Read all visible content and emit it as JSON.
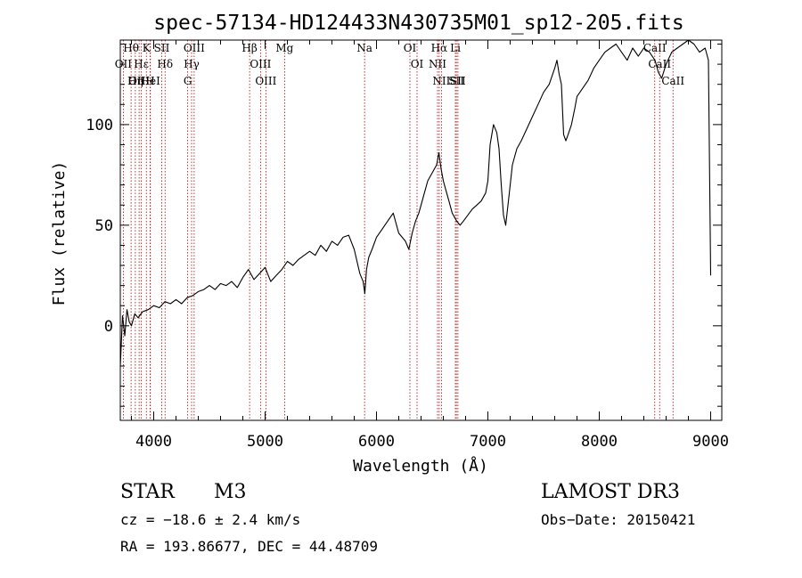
{
  "chart_data": {
    "type": "line",
    "title": "spec-57134-HD124433N430735M01_sp12-205.fits",
    "xlabel": "Wavelength (Å)",
    "ylabel": "Flux (relative)",
    "xlim": [
      3700,
      9100
    ],
    "ylim": [
      -47,
      142
    ],
    "x_ticks": [
      4000,
      5000,
      6000,
      7000,
      8000,
      9000
    ],
    "x_tick_labels": [
      "4000",
      "5000",
      "6000",
      "7000",
      "8000",
      "9000"
    ],
    "y_ticks": [
      0,
      50,
      100
    ],
    "y_tick_labels": [
      "0",
      "50",
      "100"
    ],
    "series": [
      {
        "name": "spectrum",
        "x": [
          3700,
          3720,
          3740,
          3760,
          3780,
          3800,
          3830,
          3860,
          3900,
          3950,
          4000,
          4050,
          4100,
          4150,
          4200,
          4250,
          4300,
          4350,
          4400,
          4450,
          4500,
          4550,
          4600,
          4650,
          4700,
          4750,
          4800,
          4850,
          4900,
          4950,
          5000,
          5050,
          5100,
          5150,
          5200,
          5250,
          5300,
          5350,
          5400,
          5450,
          5500,
          5550,
          5600,
          5650,
          5700,
          5750,
          5800,
          5850,
          5880,
          5895,
          5910,
          5930,
          5960,
          6000,
          6050,
          6100,
          6150,
          6180,
          6200,
          6230,
          6260,
          6290,
          6320,
          6350,
          6380,
          6420,
          6460,
          6500,
          6540,
          6560,
          6580,
          6600,
          6620,
          6650,
          6680,
          6700,
          6720,
          6750,
          6780,
          6820,
          6860,
          6900,
          6940,
          6980,
          7000,
          7020,
          7050,
          7080,
          7100,
          7120,
          7140,
          7160,
          7190,
          7220,
          7260,
          7300,
          7350,
          7400,
          7450,
          7500,
          7550,
          7600,
          7620,
          7640,
          7660,
          7680,
          7700,
          7720,
          7750,
          7780,
          7800,
          7850,
          7900,
          7950,
          8000,
          8050,
          8100,
          8150,
          8200,
          8250,
          8300,
          8350,
          8400,
          8450,
          8500,
          8530,
          8560,
          8600,
          8650,
          8700,
          8750,
          8800,
          8850,
          8900,
          8950,
          8980,
          9000
        ],
        "y": [
          -20,
          5,
          -5,
          8,
          2,
          0,
          6,
          4,
          7,
          8,
          10,
          9,
          12,
          11,
          13,
          11,
          14,
          15,
          17,
          18,
          20,
          18,
          21,
          20,
          22,
          19,
          24,
          28,
          23,
          26,
          29,
          22,
          25,
          28,
          32,
          30,
          33,
          35,
          37,
          35,
          40,
          37,
          42,
          40,
          44,
          45,
          38,
          26,
          22,
          16,
          28,
          34,
          38,
          44,
          48,
          52,
          56,
          50,
          46,
          44,
          42,
          38,
          46,
          52,
          56,
          64,
          72,
          76,
          80,
          86,
          78,
          72,
          68,
          62,
          56,
          54,
          52,
          50,
          52,
          55,
          58,
          60,
          62,
          66,
          72,
          90,
          100,
          96,
          88,
          70,
          55,
          50,
          65,
          80,
          88,
          92,
          98,
          104,
          110,
          116,
          120,
          128,
          132,
          125,
          120,
          95,
          92,
          95,
          100,
          108,
          114,
          118,
          122,
          128,
          132,
          136,
          138,
          140,
          136,
          132,
          138,
          134,
          138,
          136,
          132,
          126,
          123,
          130,
          136,
          138,
          140,
          142,
          140,
          136,
          138,
          132,
          25
        ]
      }
    ],
    "line_markers": [
      {
        "label": "Hθ",
        "x": 3797
      },
      {
        "label": "OII",
        "x": 3727
      },
      {
        "label": "OIII",
        "x": 3869
      },
      {
        "label": "Hε",
        "x": 3889
      },
      {
        "label": "Hη",
        "x": 3835
      },
      {
        "label": "K",
        "x": 3934
      },
      {
        "label": "HeI",
        "x": 3970
      },
      {
        "label": "H",
        "x": 3968
      },
      {
        "label": "SII",
        "x": 4072
      },
      {
        "label": "Hδ",
        "x": 4102
      },
      {
        "label": "OIII",
        "x": 4363
      },
      {
        "label": "Hγ",
        "x": 4340
      },
      {
        "label": "G",
        "x": 4305
      },
      {
        "label": "Hβ",
        "x": 4861
      },
      {
        "label": "OIII",
        "x": 4959
      },
      {
        "label": "OIII",
        "x": 5007
      },
      {
        "label": "Mg",
        "x": 5175
      },
      {
        "label": "Na",
        "x": 5893
      },
      {
        "label": "OI",
        "x": 6300
      },
      {
        "label": "OI",
        "x": 6364
      },
      {
        "label": "Hα",
        "x": 6563
      },
      {
        "label": "NII",
        "x": 6548
      },
      {
        "label": "NII",
        "x": 6583
      },
      {
        "label": "SII",
        "x": 6717
      },
      {
        "label": "Li",
        "x": 6708
      },
      {
        "label": "SII",
        "x": 6731
      },
      {
        "label": "CaII",
        "x": 8498
      },
      {
        "label": "CaII",
        "x": 8542
      },
      {
        "label": "CaII",
        "x": 8662
      }
    ]
  },
  "info": {
    "class_label": "STAR",
    "subclass": "M3",
    "survey": "LAMOST DR3",
    "redshift": "cz = −18.6 ± 2.4 km/s",
    "obs_date": "Obs−Date: 20150421",
    "coords": "RA = 193.86677, DEC =  44.48709"
  },
  "colors": {
    "spectrum": "#000000",
    "marker_line": "#b40000",
    "axis": "#000000",
    "background": "#ffffff"
  }
}
